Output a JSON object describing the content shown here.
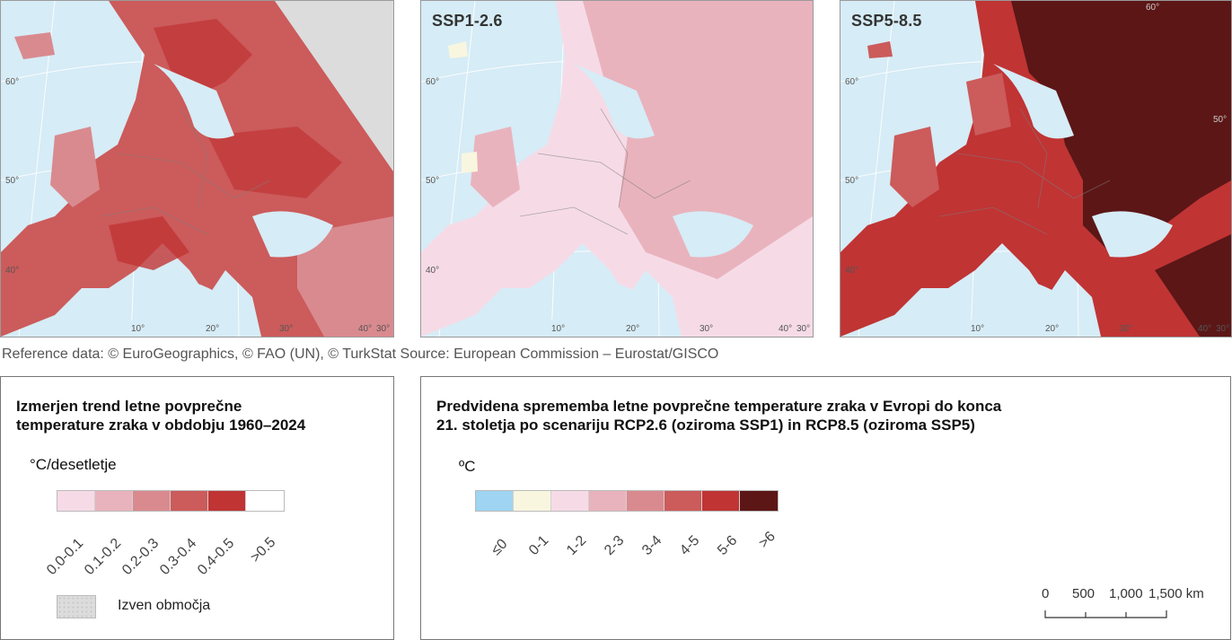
{
  "maps": {
    "left": {
      "title": "",
      "lat_labels": [
        "60°",
        "50°",
        "40°"
      ],
      "lon_labels": [
        "10°",
        "20°",
        "30°",
        "40°",
        "30°"
      ]
    },
    "middle": {
      "title": "SSP1-2.6",
      "lat_labels": [
        "60°",
        "50°",
        "40°"
      ],
      "lon_labels": [
        "10°",
        "20°",
        "30°",
        "40°",
        "30°"
      ]
    },
    "right": {
      "title": "SSP5-8.5",
      "lat_labels": [
        "60°",
        "50°",
        "40°"
      ],
      "lon_labels": [
        "60°",
        "50°",
        "10°",
        "20°",
        "30°",
        "40°",
        "30°"
      ]
    }
  },
  "reference": "Reference data: © EuroGeographics, © FAO (UN), © TurkStat Source: European Commission – Eurostat/GISCO",
  "legend_trend": {
    "title_line1": "Izmerjen trend letne povprečne",
    "title_line2": "temperature zraka v obdobju 1960–2024",
    "unit": "°C/desetletje",
    "classes": [
      {
        "label": "0.0-0.1",
        "color": "#f6dbe7"
      },
      {
        "label": "0.1-0.2",
        "color": "#e9b3bd"
      },
      {
        "label": "0.2-0.3",
        "color": "#d98a8f"
      },
      {
        "label": "0.3-0.4",
        "color": "#cc5b5b"
      },
      {
        "label": "0.4-0.5",
        "color": "#c03434"
      },
      {
        "label": ">0.5",
        "color": "#ffffff"
      }
    ],
    "outside_label": "Izven območja"
  },
  "legend_projection": {
    "title_line1": "Predvidena sprememba letne povprečne temperature zraka v Evropi do konca",
    "title_line2": "21. stoletja po scenariju RCP2.6 (oziroma SSP1) in RCP8.5 (oziroma SSP5)",
    "unit": "ºC",
    "classes": [
      {
        "label": "≤0",
        "color": "#9fd4f2"
      },
      {
        "label": "0-1",
        "color": "#f8f6df"
      },
      {
        "label": "1-2",
        "color": "#f6dbe7"
      },
      {
        "label": "2-3",
        "color": "#e9b3bd"
      },
      {
        "label": "3-4",
        "color": "#d98a8f"
      },
      {
        "label": "4-5",
        "color": "#cc5b5b"
      },
      {
        "label": "5-6",
        "color": "#c03434"
      },
      {
        "label": ">6",
        "color": "#5c1616"
      }
    ],
    "scale_labels": [
      "0",
      "500",
      "1,000",
      "1,500 km"
    ]
  },
  "colors": {
    "sea": "#d6ecf6",
    "outside": "#dcdcdc",
    "border": "#7d7d7d"
  }
}
